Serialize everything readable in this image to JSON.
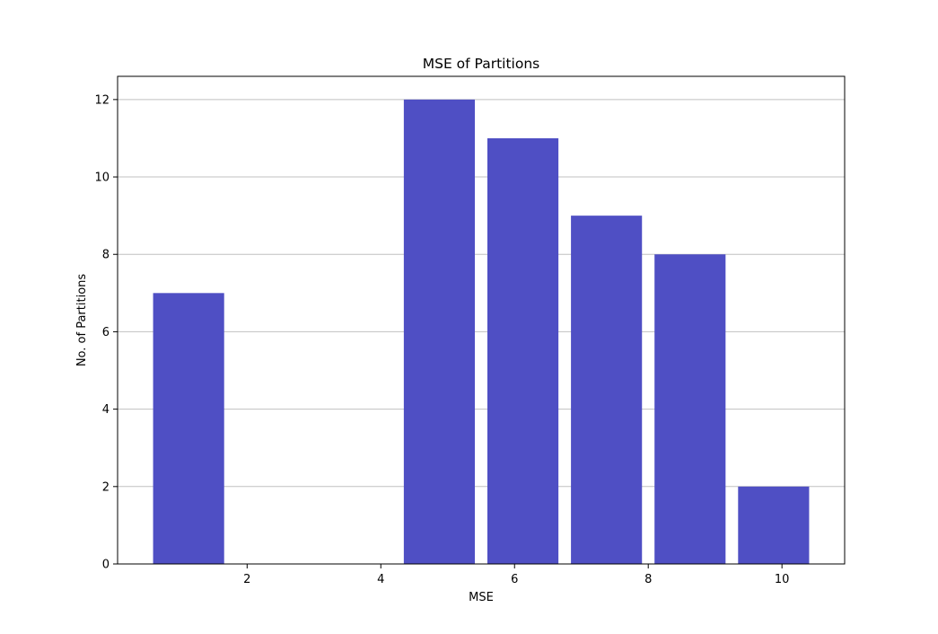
{
  "chart_data": {
    "type": "bar",
    "title": "MSE of Partitions",
    "xlabel": "MSE",
    "ylabel": "No. of Partitions",
    "bins": [
      {
        "x_start": 0.5,
        "x_end": 1.75,
        "value": 7
      },
      {
        "x_start": 1.75,
        "x_end": 3.0,
        "value": 0
      },
      {
        "x_start": 3.0,
        "x_end": 4.25,
        "value": 0
      },
      {
        "x_start": 4.25,
        "x_end": 5.5,
        "value": 12
      },
      {
        "x_start": 5.5,
        "x_end": 6.75,
        "value": 11
      },
      {
        "x_start": 6.75,
        "x_end": 8.0,
        "value": 9
      },
      {
        "x_start": 8.0,
        "x_end": 9.25,
        "value": 8
      },
      {
        "x_start": 9.25,
        "x_end": 10.5,
        "value": 2
      }
    ],
    "bar_width_fraction": 0.85,
    "xlim": [
      0.0625,
      10.9375
    ],
    "ylim": [
      0,
      12.6
    ],
    "x_ticks": [
      2,
      4,
      6,
      8,
      10
    ],
    "y_ticks": [
      0,
      2,
      4,
      6,
      8,
      10,
      12
    ],
    "grid": "horizontal",
    "bar_color": "#4f4fc4",
    "grid_color": "#c0c0c0"
  }
}
